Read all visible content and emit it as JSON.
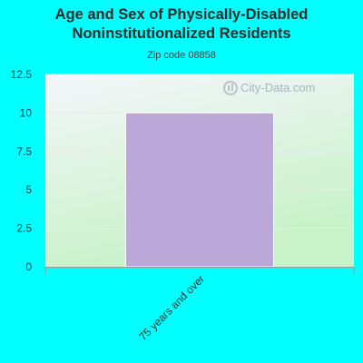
{
  "title_line1": "Age and Sex of Physically-Disabled",
  "title_line2": "Noninstitutionalized Residents",
  "subtitle": "Zip code 08858",
  "watermark": "City-Data.com",
  "colors": {
    "background": "#00ffff",
    "bar": "#bba8d8",
    "plot_grad_top": "#f4f6fb",
    "plot_grad_bottom": "#c8f2c8",
    "axis": "#999999"
  },
  "chart_data": {
    "type": "bar",
    "categories": [
      "75 years and over"
    ],
    "values": [
      10
    ],
    "ylim": [
      0,
      12.5
    ],
    "yticks": [
      "0",
      "2.5",
      "5",
      "7.5",
      "10",
      "12.5"
    ],
    "grid": true,
    "legend": "none"
  }
}
